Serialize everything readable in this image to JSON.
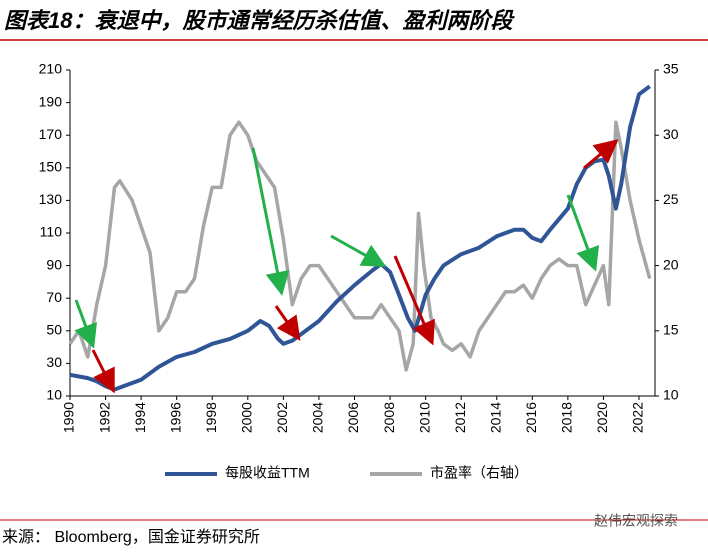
{
  "chart_data": {
    "type": "line",
    "title": "图表18：衰退中，股市通常经历杀估值、盈利两阶段",
    "source": "来源： Bloomberg，国金证券研究所",
    "watermark": "赵伟宏观探索",
    "xlim": [
      1990,
      2022.9
    ],
    "xticks": [
      1990,
      1992,
      1994,
      1996,
      1998,
      2000,
      2002,
      2004,
      2006,
      2008,
      2010,
      2012,
      2014,
      2016,
      2018,
      2020,
      2022
    ],
    "ylim": [
      10,
      210
    ],
    "yticks": [
      10,
      30,
      50,
      70,
      90,
      110,
      130,
      150,
      170,
      190,
      210
    ],
    "y2lim": [
      10,
      35
    ],
    "y2ticks": [
      10,
      15,
      20,
      25,
      30,
      35
    ],
    "legend": "bottom",
    "series": [
      {
        "name": "每股收益TTM",
        "color": "#2f5597",
        "x": [
          1990,
          1991,
          1991.5,
          1992,
          1992.5,
          1993,
          1994,
          1995,
          1996,
          1997,
          1998,
          1999,
          2000,
          2000.7,
          2001.2,
          2001.7,
          2002,
          2002.5,
          2003,
          2004,
          2005,
          2006,
          2007,
          2007.5,
          2008,
          2008.5,
          2009,
          2009.4,
          2010,
          2010.5,
          2011,
          2012,
          2013,
          2014,
          2015,
          2015.5,
          2016,
          2016.5,
          2017,
          2018,
          2018.5,
          2019,
          2019.5,
          2020,
          2020.3,
          2020.7,
          2021,
          2021.5,
          2022,
          2022.6
        ],
        "values": [
          23,
          21,
          19,
          16,
          14,
          16,
          20,
          28,
          34,
          37,
          42,
          45,
          50,
          56,
          53,
          45,
          42,
          44,
          48,
          56,
          68,
          78,
          87,
          91,
          86,
          72,
          58,
          50,
          72,
          82,
          90,
          97,
          101,
          108,
          112,
          112,
          107,
          105,
          112,
          125,
          140,
          150,
          154,
          155,
          145,
          125,
          140,
          175,
          195,
          200
        ]
      },
      {
        "name": "市盈率（右轴）",
        "color": "#a6a6a6",
        "axis": "y2",
        "x": [
          1990,
          1990.5,
          1991,
          1991.5,
          1992,
          1992.5,
          1992.8,
          1993.5,
          1994,
          1994.5,
          1995,
          1995.5,
          1996,
          1996.5,
          1997,
          1997.5,
          1998,
          1998.5,
          1999,
          1999.5,
          2000,
          2000.5,
          2001,
          2001.5,
          2002,
          2002.5,
          2003,
          2003.5,
          2004,
          2004.5,
          2005,
          2005.5,
          2006,
          2006.5,
          2007,
          2007.5,
          2008,
          2008.5,
          2008.9,
          2009.3,
          2009.6,
          2009.9,
          2010.3,
          2010.7,
          2011,
          2011.5,
          2012,
          2012.5,
          2013,
          2013.5,
          2014,
          2014.5,
          2015,
          2015.5,
          2016,
          2016.5,
          2017,
          2017.5,
          2018,
          2018.5,
          2019,
          2019.5,
          2020,
          2020.3,
          2020.7,
          2021,
          2021.5,
          2022,
          2022.6
        ],
        "values": [
          14,
          15,
          13,
          17,
          20,
          26,
          26.5,
          25,
          23,
          21,
          15,
          16,
          18,
          18,
          19,
          23,
          26,
          26,
          30,
          31,
          30,
          28,
          27,
          26,
          22,
          17,
          19,
          20,
          20,
          19,
          18,
          17,
          16,
          16,
          16,
          17,
          16,
          15,
          12,
          14,
          24,
          20,
          16,
          15,
          14,
          13.5,
          14,
          13,
          15,
          16,
          17,
          18,
          18,
          18.5,
          17.5,
          19,
          20,
          20.5,
          20,
          20,
          17,
          18.5,
          20,
          17,
          31,
          29,
          25,
          22,
          19
        ]
      }
    ]
  }
}
